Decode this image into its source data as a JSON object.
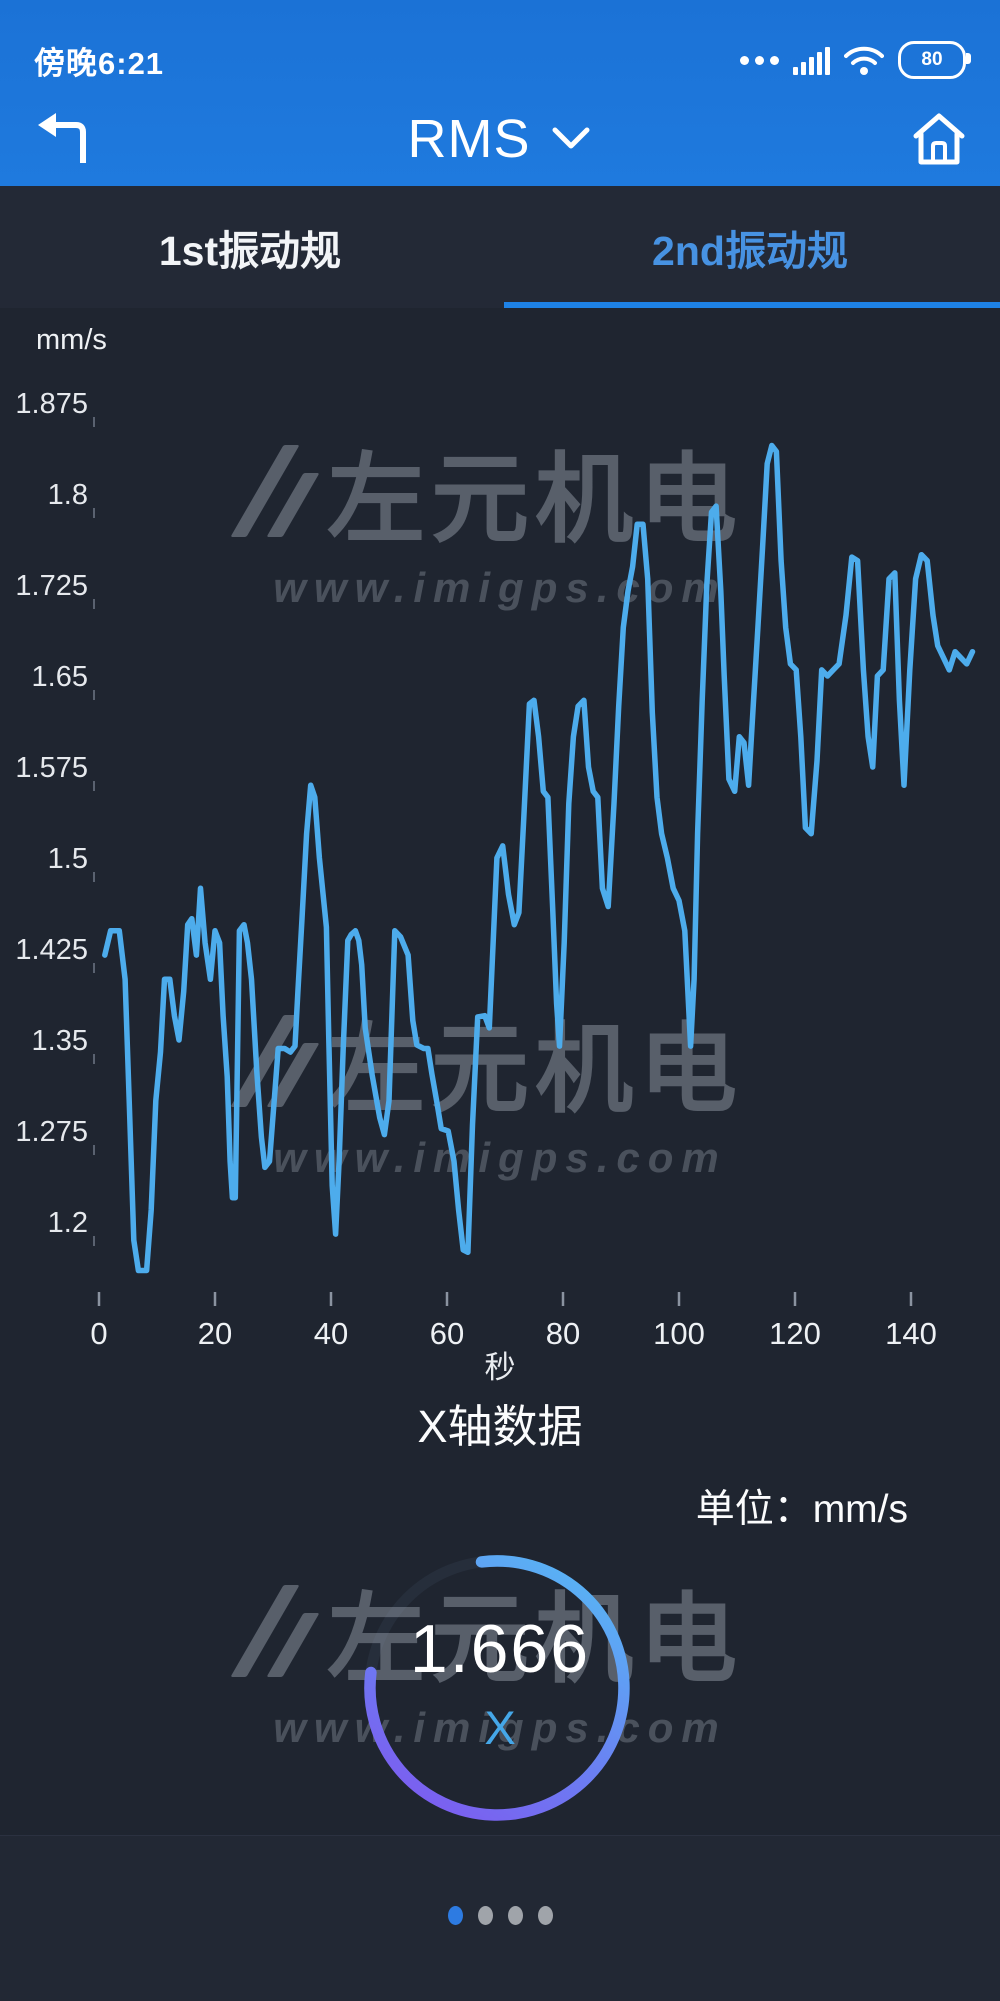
{
  "status_bar": {
    "time": "傍晚6:21",
    "battery_percent": "80",
    "icons": [
      "more-dots-icon",
      "signal-strength-icon",
      "wifi-icon",
      "battery-icon"
    ]
  },
  "header": {
    "title": "RMS",
    "accent_color": "#1f7ade"
  },
  "tabs": [
    {
      "label": "1st振动规",
      "active": false
    },
    {
      "label": "2nd振动规",
      "active": true
    }
  ],
  "tab_active_color": "#4792e2",
  "tab_underline_color": "#1e82e6",
  "watermark": {
    "brand": "左元机电",
    "url": "www.imigps.com"
  },
  "chart_data": {
    "type": "line",
    "title": "X轴数据",
    "ylabel": "mm/s",
    "xlabel": "秒",
    "unit_note": "单位：mm/s",
    "line_color": "#4dacec",
    "grid": false,
    "ylim": [
      1.2,
      1.875
    ],
    "xlim": [
      0,
      152
    ],
    "y_ticks": [
      1.875,
      1.8,
      1.725,
      1.65,
      1.575,
      1.5,
      1.425,
      1.35,
      1.275,
      1.2
    ],
    "x_ticks": [
      0,
      20,
      40,
      60,
      80,
      100,
      120,
      140
    ],
    "points": [
      [
        1,
        1.42
      ],
      [
        2,
        1.44
      ],
      [
        3.5,
        1.44
      ],
      [
        4.5,
        1.4
      ],
      [
        5.2,
        1.3
      ],
      [
        6,
        1.185
      ],
      [
        6.8,
        1.16
      ],
      [
        8.2,
        1.16
      ],
      [
        9,
        1.21
      ],
      [
        9.8,
        1.3
      ],
      [
        10.6,
        1.34
      ],
      [
        11.3,
        1.4
      ],
      [
        12.2,
        1.4
      ],
      [
        13,
        1.37
      ],
      [
        13.8,
        1.35
      ],
      [
        14.6,
        1.39
      ],
      [
        15.3,
        1.445
      ],
      [
        16,
        1.45
      ],
      [
        16.8,
        1.42
      ],
      [
        17.5,
        1.475
      ],
      [
        18.3,
        1.43
      ],
      [
        19.2,
        1.4
      ],
      [
        20,
        1.44
      ],
      [
        20.8,
        1.43
      ],
      [
        21.4,
        1.37
      ],
      [
        22.1,
        1.32
      ],
      [
        22.6,
        1.25
      ],
      [
        23,
        1.22
      ],
      [
        23.5,
        1.22
      ],
      [
        23.8,
        1.31
      ],
      [
        24.2,
        1.44
      ],
      [
        25,
        1.445
      ],
      [
        25.6,
        1.43
      ],
      [
        26.3,
        1.4
      ],
      [
        27.2,
        1.324
      ],
      [
        28,
        1.27
      ],
      [
        28.6,
        1.245
      ],
      [
        29.4,
        1.25
      ],
      [
        30.2,
        1.3
      ],
      [
        30.9,
        1.343
      ],
      [
        32,
        1.343
      ],
      [
        33,
        1.34
      ],
      [
        33.8,
        1.345
      ],
      [
        34.3,
        1.39
      ],
      [
        35,
        1.45
      ],
      [
        35.8,
        1.52
      ],
      [
        36.5,
        1.56
      ],
      [
        37.2,
        1.55
      ],
      [
        38,
        1.5
      ],
      [
        39.2,
        1.443
      ],
      [
        39.6,
        1.354
      ],
      [
        40.2,
        1.23
      ],
      [
        40.8,
        1.19
      ],
      [
        41.4,
        1.25
      ],
      [
        42.1,
        1.343
      ],
      [
        42.9,
        1.432
      ],
      [
        43.5,
        1.437
      ],
      [
        44.2,
        1.44
      ],
      [
        44.8,
        1.432
      ],
      [
        45.3,
        1.412
      ],
      [
        45.9,
        1.36
      ],
      [
        47.1,
        1.321
      ],
      [
        48.4,
        1.286
      ],
      [
        49.2,
        1.272
      ],
      [
        50,
        1.3
      ],
      [
        51,
        1.44
      ],
      [
        52,
        1.435
      ],
      [
        53.3,
        1.42
      ],
      [
        54.1,
        1.366
      ],
      [
        54.8,
        1.346
      ],
      [
        56,
        1.343
      ],
      [
        56.7,
        1.343
      ],
      [
        57.4,
        1.322
      ],
      [
        58.2,
        1.3
      ],
      [
        59,
        1.277
      ],
      [
        60.2,
        1.275
      ],
      [
        61.2,
        1.25
      ],
      [
        62,
        1.21
      ],
      [
        62.8,
        1.177
      ],
      [
        63.6,
        1.175
      ],
      [
        64.4,
        1.28
      ],
      [
        65.3,
        1.369
      ],
      [
        66.5,
        1.37
      ],
      [
        67.3,
        1.36
      ],
      [
        68,
        1.435
      ],
      [
        68.6,
        1.5
      ],
      [
        69.6,
        1.51
      ],
      [
        70.6,
        1.47
      ],
      [
        71.6,
        1.445
      ],
      [
        72.4,
        1.455
      ],
      [
        73.2,
        1.53
      ],
      [
        74.2,
        1.627
      ],
      [
        75,
        1.63
      ],
      [
        75.8,
        1.6
      ],
      [
        76.6,
        1.555
      ],
      [
        77.4,
        1.55
      ],
      [
        78.2,
        1.46
      ],
      [
        78.9,
        1.38
      ],
      [
        79.4,
        1.345
      ],
      [
        80.2,
        1.43
      ],
      [
        81,
        1.545
      ],
      [
        81.8,
        1.6
      ],
      [
        82.6,
        1.625
      ],
      [
        83.6,
        1.63
      ],
      [
        84.4,
        1.575
      ],
      [
        85.2,
        1.555
      ],
      [
        86,
        1.55
      ],
      [
        86.8,
        1.475
      ],
      [
        87.8,
        1.46
      ],
      [
        88.8,
        1.545
      ],
      [
        89.6,
        1.625
      ],
      [
        90.4,
        1.69
      ],
      [
        91.2,
        1.72
      ],
      [
        92,
        1.74
      ],
      [
        92.8,
        1.775
      ],
      [
        93.8,
        1.775
      ],
      [
        94.6,
        1.73
      ],
      [
        95.4,
        1.62
      ],
      [
        96.2,
        1.55
      ],
      [
        97,
        1.52
      ],
      [
        98,
        1.5
      ],
      [
        99,
        1.475
      ],
      [
        100,
        1.465
      ],
      [
        101,
        1.44
      ],
      [
        102,
        1.345
      ],
      [
        102.6,
        1.4
      ],
      [
        103.2,
        1.52
      ],
      [
        104,
        1.63
      ],
      [
        104.8,
        1.725
      ],
      [
        105.6,
        1.785
      ],
      [
        106.4,
        1.79
      ],
      [
        107.2,
        1.72
      ],
      [
        107.8,
        1.65
      ],
      [
        108.6,
        1.565
      ],
      [
        109.6,
        1.555
      ],
      [
        110.4,
        1.6
      ],
      [
        111.2,
        1.595
      ],
      [
        112,
        1.56
      ],
      [
        112.8,
        1.625
      ],
      [
        113.6,
        1.69
      ],
      [
        114.4,
        1.755
      ],
      [
        115.2,
        1.825
      ],
      [
        116,
        1.84
      ],
      [
        116.8,
        1.835
      ],
      [
        117.6,
        1.745
      ],
      [
        118.4,
        1.69
      ],
      [
        119.2,
        1.66
      ],
      [
        120.2,
        1.655
      ],
      [
        121,
        1.6
      ],
      [
        121.8,
        1.525
      ],
      [
        122.8,
        1.52
      ],
      [
        123.8,
        1.58
      ],
      [
        124.6,
        1.655
      ],
      [
        125.6,
        1.65
      ],
      [
        126.6,
        1.655
      ],
      [
        127.6,
        1.66
      ],
      [
        128.8,
        1.7
      ],
      [
        129.8,
        1.748
      ],
      [
        130.8,
        1.745
      ],
      [
        131.8,
        1.655
      ],
      [
        132.6,
        1.6
      ],
      [
        133.4,
        1.575
      ],
      [
        134.2,
        1.65
      ],
      [
        135.2,
        1.655
      ],
      [
        136.2,
        1.73
      ],
      [
        137.2,
        1.735
      ],
      [
        138,
        1.63
      ],
      [
        138.8,
        1.56
      ],
      [
        139.8,
        1.655
      ],
      [
        140.8,
        1.73
      ],
      [
        141.8,
        1.75
      ],
      [
        142.8,
        1.745
      ],
      [
        143.8,
        1.7
      ],
      [
        144.6,
        1.675
      ],
      [
        145.6,
        1.665
      ],
      [
        146.6,
        1.655
      ],
      [
        147.6,
        1.67
      ],
      [
        148.6,
        1.665
      ],
      [
        149.6,
        1.66
      ],
      [
        150.6,
        1.67
      ]
    ]
  },
  "gauge": {
    "value": "1.666",
    "axis_label": "X",
    "arc_color_start": "#57b8f5",
    "arc_color_end": "#8055ef"
  },
  "pagination": {
    "count": 4,
    "active": 0
  }
}
